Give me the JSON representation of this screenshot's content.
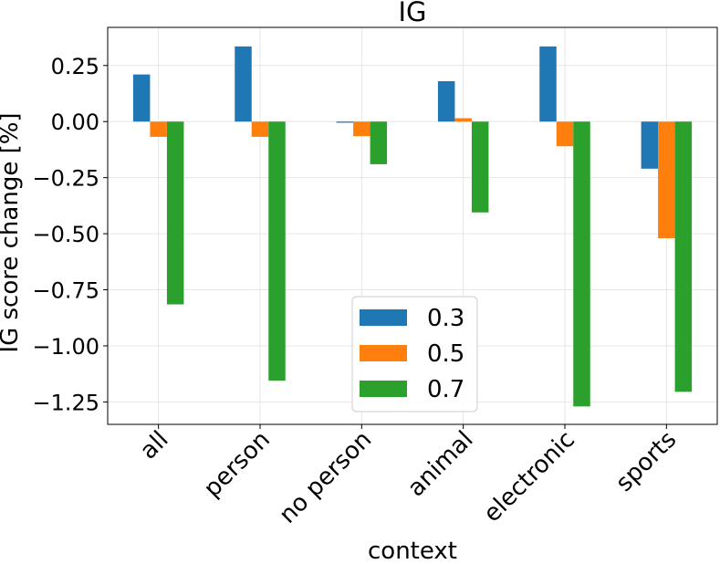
{
  "chart_data": {
    "type": "bar",
    "title": "IG",
    "xlabel": "context",
    "ylabel": "IG score change [%]",
    "categories": [
      "all",
      "person",
      "no person",
      "animal",
      "electronic",
      "sports"
    ],
    "series": [
      {
        "name": "0.3",
        "color": "#1f77b4",
        "values": [
          0.21,
          0.335,
          -0.005,
          0.18,
          0.335,
          -0.21
        ]
      },
      {
        "name": "0.5",
        "color": "#ff7f0e",
        "values": [
          -0.068,
          -0.068,
          -0.065,
          0.015,
          -0.11,
          -0.52
        ]
      },
      {
        "name": "0.7",
        "color": "#2ca02c",
        "values": [
          -0.815,
          -1.155,
          -0.19,
          -0.405,
          -1.27,
          -1.205
        ]
      }
    ],
    "ylim": [
      -1.35,
      0.42
    ],
    "yticks": [
      0.25,
      0.0,
      -0.25,
      -0.5,
      -0.75,
      -1.0,
      -1.25
    ],
    "ytick_labels": [
      "0.25",
      "0.00",
      "−0.25",
      "−0.50",
      "−0.75",
      "−1.00",
      "−1.25"
    ],
    "grid": true,
    "legend_position": "lower center"
  }
}
